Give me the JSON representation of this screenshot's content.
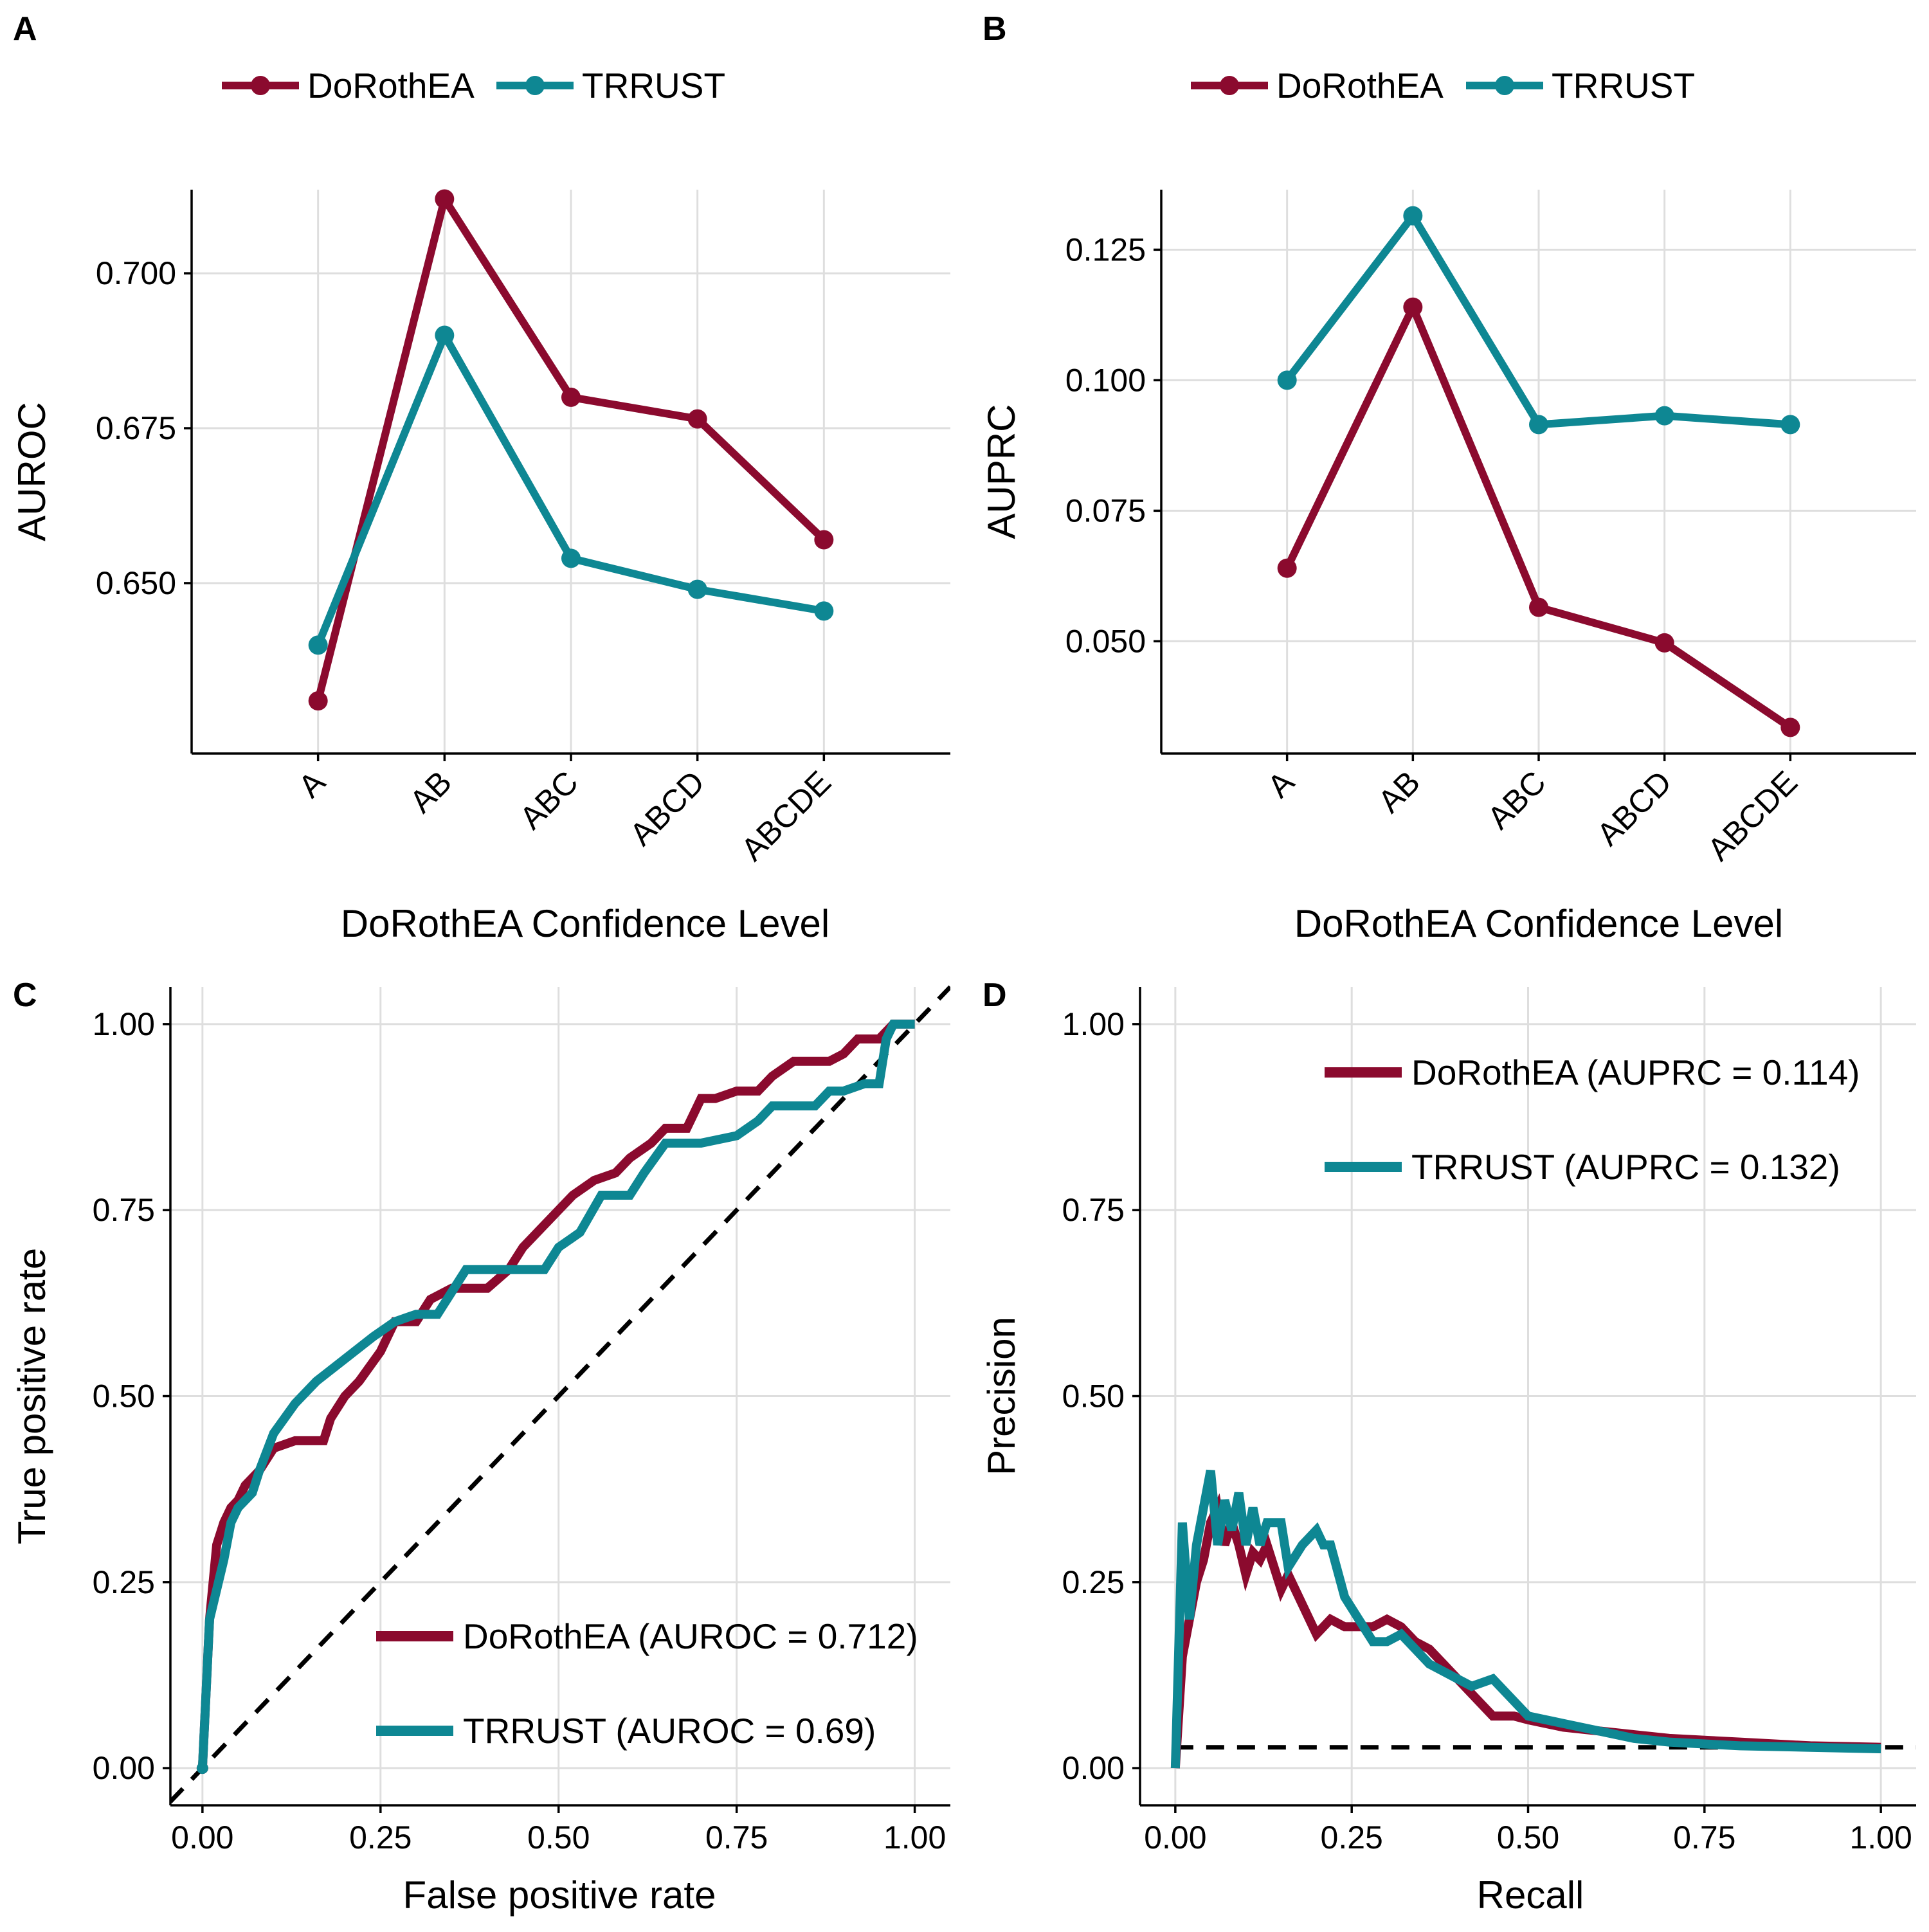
{
  "colors": {
    "dorothea": "#8b0a2e",
    "trrust": "#0e8793",
    "ref": "#000000",
    "grid": "#dedede"
  },
  "chart_data": [
    {
      "panel": "A",
      "type": "line",
      "categories": [
        "A",
        "AB",
        "ABC",
        "ABCD",
        "ABCDE"
      ],
      "series": [
        {
          "name": "DoRothEA",
          "values": [
            0.631,
            0.712,
            0.68,
            0.6765,
            0.657
          ]
        },
        {
          "name": "TRRUST",
          "values": [
            0.64,
            0.69,
            0.654,
            0.649,
            0.6455
          ]
        }
      ],
      "xlabel": "DoRothEA Confidence Level",
      "ylabel": "AUROC",
      "ylim": [
        0.6225,
        0.7135
      ],
      "yticks": [
        0.65,
        0.675,
        0.7
      ],
      "ytick_labels": [
        "0.650",
        "0.675",
        "0.700"
      ],
      "legend": "top",
      "grid": true
    },
    {
      "panel": "B",
      "type": "line",
      "categories": [
        "A",
        "AB",
        "ABC",
        "ABCD",
        "ABCDE"
      ],
      "series": [
        {
          "name": "DoRothEA",
          "values": [
            0.064,
            0.114,
            0.0565,
            0.0497,
            0.0335
          ]
        },
        {
          "name": "TRRUST",
          "values": [
            0.1,
            0.1315,
            0.0915,
            0.0932,
            0.0915
          ]
        }
      ],
      "xlabel": "DoRothEA Confidence Level",
      "ylabel": "AUPRC",
      "ylim": [
        0.0285,
        0.1365
      ],
      "yticks": [
        0.05,
        0.075,
        0.1,
        0.125
      ],
      "ytick_labels": [
        "0.050",
        "0.075",
        "0.100",
        "0.125"
      ],
      "legend": "top",
      "grid": true
    },
    {
      "panel": "C",
      "type": "line",
      "series": [
        {
          "name": "DoRothEA (AUROC = 0.712)",
          "x": [
            0,
            0.005,
            0.01,
            0.015,
            0.02,
            0.03,
            0.04,
            0.05,
            0.06,
            0.08,
            0.1,
            0.13,
            0.17,
            0.18,
            0.2,
            0.22,
            0.25,
            0.27,
            0.3,
            0.32,
            0.35,
            0.4,
            0.43,
            0.45,
            0.48,
            0.5,
            0.52,
            0.55,
            0.58,
            0.6,
            0.63,
            0.65,
            0.68,
            0.7,
            0.72,
            0.75,
            0.78,
            0.8,
            0.83,
            0.85,
            0.88,
            0.9,
            0.92,
            0.95,
            0.97,
            1.0
          ],
          "y": [
            0,
            0.1,
            0.2,
            0.25,
            0.3,
            0.33,
            0.35,
            0.36,
            0.38,
            0.4,
            0.43,
            0.44,
            0.44,
            0.47,
            0.5,
            0.52,
            0.56,
            0.6,
            0.6,
            0.63,
            0.645,
            0.645,
            0.67,
            0.7,
            0.73,
            0.75,
            0.77,
            0.79,
            0.8,
            0.82,
            0.84,
            0.86,
            0.86,
            0.9,
            0.9,
            0.91,
            0.91,
            0.93,
            0.95,
            0.95,
            0.95,
            0.96,
            0.98,
            0.98,
            1.0,
            1.0
          ]
        },
        {
          "name": "TRRUST (AUROC = 0.69)",
          "x": [
            0,
            0.005,
            0.01,
            0.02,
            0.03,
            0.04,
            0.05,
            0.07,
            0.08,
            0.1,
            0.13,
            0.16,
            0.2,
            0.24,
            0.27,
            0.3,
            0.33,
            0.35,
            0.37,
            0.4,
            0.42,
            0.45,
            0.48,
            0.5,
            0.53,
            0.56,
            0.6,
            0.62,
            0.65,
            0.68,
            0.7,
            0.75,
            0.78,
            0.8,
            0.83,
            0.86,
            0.88,
            0.9,
            0.93,
            0.95,
            0.96,
            0.97,
            1.0
          ],
          "y": [
            0,
            0.1,
            0.2,
            0.24,
            0.28,
            0.33,
            0.35,
            0.37,
            0.4,
            0.45,
            0.49,
            0.52,
            0.55,
            0.58,
            0.6,
            0.61,
            0.61,
            0.64,
            0.67,
            0.67,
            0.67,
            0.67,
            0.67,
            0.7,
            0.72,
            0.77,
            0.77,
            0.8,
            0.84,
            0.84,
            0.84,
            0.85,
            0.87,
            0.89,
            0.89,
            0.89,
            0.91,
            0.91,
            0.92,
            0.92,
            0.98,
            1.0,
            1.0
          ]
        }
      ],
      "xlabel": "False positive rate",
      "ylabel": "True positive rate",
      "xlim": [
        -0.045,
        1.05
      ],
      "ylim": [
        -0.05,
        1.05
      ],
      "xticks": [
        0,
        0.25,
        0.5,
        0.75,
        1.0
      ],
      "yticks": [
        0,
        0.25,
        0.5,
        0.75,
        1.0
      ],
      "xtick_labels": [
        "0.00",
        "0.25",
        "0.50",
        "0.75",
        "1.00"
      ],
      "ytick_labels": [
        "0.00",
        "0.25",
        "0.50",
        "0.75",
        "1.00"
      ],
      "reference_line": "diagonal",
      "legend": "bottom-right",
      "grid": true
    },
    {
      "panel": "D",
      "type": "line",
      "series": [
        {
          "name": "DoRothEA (AUPRC = 0.114)",
          "x": [
            0,
            0.01,
            0.02,
            0.03,
            0.04,
            0.05,
            0.06,
            0.07,
            0.08,
            0.09,
            0.1,
            0.11,
            0.12,
            0.13,
            0.15,
            0.16,
            0.18,
            0.2,
            0.22,
            0.24,
            0.26,
            0.28,
            0.3,
            0.32,
            0.34,
            0.36,
            0.38,
            0.4,
            0.42,
            0.45,
            0.48,
            0.5,
            0.55,
            0.6,
            0.65,
            0.7,
            0.8,
            0.9,
            1.0
          ],
          "y": [
            0,
            0.15,
            0.2,
            0.25,
            0.28,
            0.33,
            0.35,
            0.3,
            0.33,
            0.3,
            0.26,
            0.29,
            0.28,
            0.3,
            0.24,
            0.26,
            0.22,
            0.18,
            0.2,
            0.19,
            0.19,
            0.19,
            0.2,
            0.19,
            0.17,
            0.16,
            0.14,
            0.12,
            0.1,
            0.07,
            0.07,
            0.065,
            0.055,
            0.05,
            0.045,
            0.04,
            0.035,
            0.03,
            0.028
          ]
        },
        {
          "name": "TRRUST (AUPRC = 0.132)",
          "x": [
            0,
            0.01,
            0.02,
            0.03,
            0.04,
            0.05,
            0.06,
            0.07,
            0.08,
            0.09,
            0.1,
            0.11,
            0.12,
            0.13,
            0.15,
            0.16,
            0.18,
            0.2,
            0.21,
            0.22,
            0.24,
            0.26,
            0.28,
            0.3,
            0.32,
            0.34,
            0.36,
            0.38,
            0.4,
            0.42,
            0.45,
            0.48,
            0.5,
            0.55,
            0.6,
            0.65,
            0.7,
            0.8,
            0.9,
            1.0
          ],
          "y": [
            0,
            0.33,
            0.2,
            0.3,
            0.35,
            0.4,
            0.3,
            0.36,
            0.32,
            0.37,
            0.3,
            0.35,
            0.3,
            0.33,
            0.33,
            0.27,
            0.3,
            0.32,
            0.3,
            0.3,
            0.23,
            0.2,
            0.17,
            0.17,
            0.18,
            0.16,
            0.14,
            0.13,
            0.12,
            0.11,
            0.12,
            0.09,
            0.07,
            0.06,
            0.05,
            0.04,
            0.035,
            0.03,
            0.028,
            0.026
          ]
        }
      ],
      "xlabel": "Recall",
      "ylabel": "Precision",
      "xlim": [
        -0.05,
        1.05
      ],
      "ylim": [
        -0.05,
        1.05
      ],
      "xticks": [
        0,
        0.25,
        0.5,
        0.75,
        1.0
      ],
      "yticks": [
        0,
        0.25,
        0.5,
        0.75,
        1.0
      ],
      "xtick_labels": [
        "0.00",
        "0.25",
        "0.50",
        "0.75",
        "1.00"
      ],
      "ytick_labels": [
        "0.00",
        "0.25",
        "0.50",
        "0.75",
        "1.00"
      ],
      "reference_line": "horizontal",
      "reference_value": 0.028,
      "legend": "top-right",
      "grid": true
    }
  ]
}
